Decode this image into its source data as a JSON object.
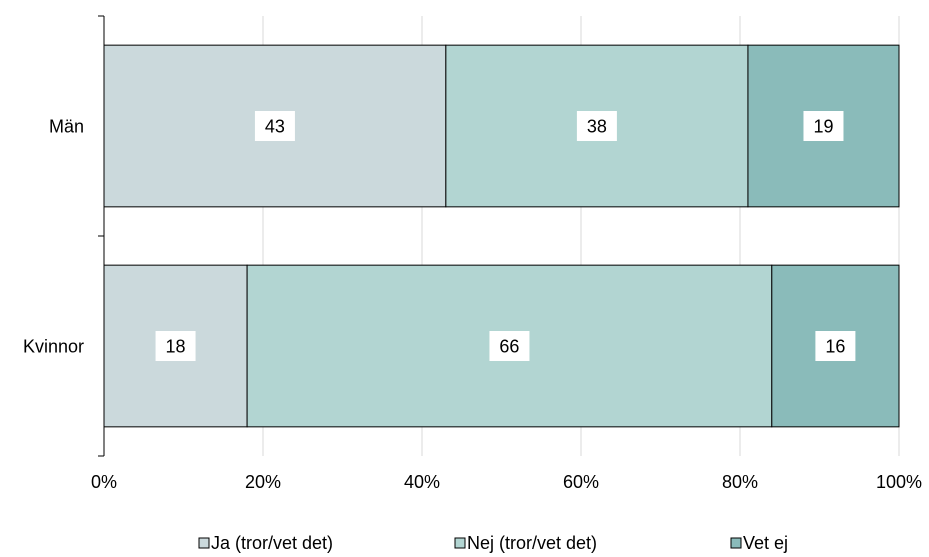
{
  "chart_data": {
    "type": "bar",
    "orientation": "horizontal",
    "stacked": "percent",
    "categories": [
      "Män",
      "Kvinnor"
    ],
    "series": [
      {
        "name": "Ja (tror/vet det)",
        "values": [
          43,
          18
        ],
        "color": "#cbd9dc"
      },
      {
        "name": "Nej (tror/vet det)",
        "values": [
          38,
          66
        ],
        "color": "#b2d5d2"
      },
      {
        "name": "Vet ej",
        "values": [
          19,
          16
        ],
        "color": "#8abbba"
      }
    ],
    "xlim": [
      0,
      100
    ],
    "x_ticks": [
      "0%",
      "20%",
      "40%",
      "60%",
      "80%",
      "100%"
    ],
    "grid": "vertical",
    "legend": "bottom",
    "title": "",
    "xlabel": "",
    "ylabel": ""
  }
}
